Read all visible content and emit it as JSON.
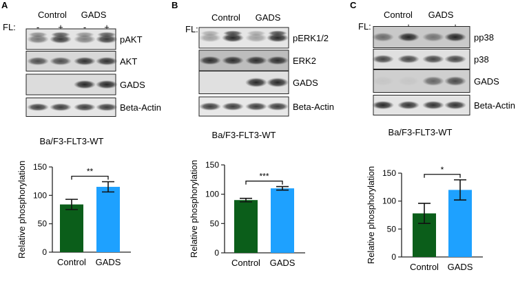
{
  "panels": [
    {
      "letter": "A",
      "groups": [
        "Control",
        "GADS"
      ],
      "fl_label": "FL:",
      "lane_signs": [
        "-",
        "+",
        "-",
        "+"
      ],
      "blot_labels": [
        "pAKT",
        "AKT",
        "GADS",
        "Beta-Actin"
      ],
      "cell_line": "Ba/F3-FLT3-WT"
    },
    {
      "letter": "B",
      "groups": [
        "Control",
        "GADS"
      ],
      "fl_label": "FL:",
      "lane_signs": [
        "-",
        "+",
        "-",
        "+"
      ],
      "blot_labels": [
        "pERK1/2",
        "ERK2",
        "GADS",
        "Beta-Actin"
      ],
      "cell_line": "Ba/F3-FLT3-WT"
    },
    {
      "letter": "C",
      "groups": [
        "Control",
        "GADS"
      ],
      "fl_label": "FL:",
      "lane_signs": [
        "-",
        "+",
        "-",
        "+"
      ],
      "blot_labels": [
        "pp38",
        "p38",
        "GADS",
        "Beta-Actin"
      ],
      "cell_line": "Ba/F3-FLT3-WT"
    }
  ],
  "colors": {
    "control": "#0b5e1a",
    "gads": "#1ea1ff"
  },
  "chart_data": [
    {
      "type": "bar",
      "categories": [
        "Control",
        "GADS"
      ],
      "values": [
        84,
        115
      ],
      "errors": [
        9,
        9
      ],
      "ylabel": "Relative phosphorylation",
      "ylim": [
        0,
        150
      ],
      "yticks": [
        0,
        50,
        100,
        150
      ],
      "significance": "**"
    },
    {
      "type": "bar",
      "categories": [
        "Control",
        "GADS"
      ],
      "values": [
        90,
        110
      ],
      "errors": [
        3,
        3
      ],
      "ylabel": "Relative phosphorylation",
      "ylim": [
        0,
        150
      ],
      "yticks": [
        0,
        50,
        100,
        150
      ],
      "significance": "***"
    },
    {
      "type": "bar",
      "categories": [
        "Control",
        "GADS"
      ],
      "values": [
        78,
        120
      ],
      "errors": [
        18,
        18
      ],
      "ylabel": "Relative phosphorylation",
      "ylim": [
        0,
        150
      ],
      "yticks": [
        0,
        50,
        100,
        150
      ],
      "significance": "*"
    }
  ]
}
